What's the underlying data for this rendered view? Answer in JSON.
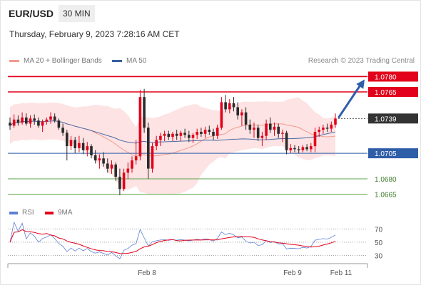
{
  "header": {
    "symbol": "EUR/USD",
    "timeframe": "30 MIN",
    "datetime": "Thursday, February 9, 2023 7:28:16 AM CET"
  },
  "legend": {
    "items": [
      {
        "label": "MA 20 + Bollinger Bands",
        "color": "#f29a8e"
      },
      {
        "label": "MA 50",
        "color": "#35609f"
      }
    ],
    "copyright": "Research © 2023 Trading Central"
  },
  "chart_data": [
    {
      "type": "candlestick",
      "title": "EUR/USD",
      "timeframe": "30 MIN",
      "ylim": [
        1.0657,
        1.0788
      ],
      "x_ticks": [
        "Feb 8",
        "Feb 9",
        "Feb 11"
      ],
      "candle_count": 81,
      "candles": [
        [
          1.0735,
          1.074,
          1.0728,
          1.0732
        ],
        [
          1.0732,
          1.0743,
          1.073,
          1.0738
        ],
        [
          1.0738,
          1.0742,
          1.0732,
          1.0735
        ],
        [
          1.0735,
          1.0745,
          1.0733,
          1.074
        ],
        [
          1.074,
          1.0744,
          1.0732,
          1.0734
        ],
        [
          1.0734,
          1.0742,
          1.073,
          1.0739
        ],
        [
          1.0739,
          1.0743,
          1.0733,
          1.0737
        ],
        [
          1.0737,
          1.074,
          1.073,
          1.0732
        ],
        [
          1.0732,
          1.0738,
          1.0726,
          1.0736
        ],
        [
          1.0736,
          1.074,
          1.0733,
          1.0738
        ],
        [
          1.0738,
          1.0745,
          1.0734,
          1.0741
        ],
        [
          1.0741,
          1.0744,
          1.0735,
          1.0737
        ],
        [
          1.0737,
          1.0739,
          1.0728,
          1.073
        ],
        [
          1.073,
          1.0734,
          1.0722,
          1.0725
        ],
        [
          1.0725,
          1.0728,
          1.0698,
          1.0712
        ],
        [
          1.0712,
          1.0722,
          1.0708,
          1.0718
        ],
        [
          1.0718,
          1.0721,
          1.0705,
          1.071
        ],
        [
          1.071,
          1.0722,
          1.0706,
          1.0715
        ],
        [
          1.0715,
          1.072,
          1.0704,
          1.0708
        ],
        [
          1.0708,
          1.0716,
          1.0702,
          1.0712
        ],
        [
          1.0712,
          1.0714,
          1.07,
          1.0703
        ],
        [
          1.0703,
          1.0708,
          1.0695,
          1.0698
        ],
        [
          1.0698,
          1.0704,
          1.069,
          1.07
        ],
        [
          1.07,
          1.0706,
          1.0692,
          1.0695
        ],
        [
          1.0695,
          1.07,
          1.0686,
          1.069
        ],
        [
          1.069,
          1.0698,
          1.0685,
          1.0694
        ],
        [
          1.0694,
          1.0696,
          1.0678,
          1.0682
        ],
        [
          1.0682,
          1.069,
          1.0664,
          1.067
        ],
        [
          1.067,
          1.069,
          1.0668,
          1.0686
        ],
        [
          1.0686,
          1.0696,
          1.068,
          1.069
        ],
        [
          1.069,
          1.0702,
          1.0686,
          1.0698
        ],
        [
          1.0698,
          1.0718,
          1.0694,
          1.0702
        ],
        [
          1.0702,
          1.0767,
          1.0698,
          1.076
        ],
        [
          1.076,
          1.0768,
          1.0725,
          1.073
        ],
        [
          1.073,
          1.0735,
          1.068,
          1.069
        ],
        [
          1.069,
          1.0715,
          1.0686,
          1.0712
        ],
        [
          1.0712,
          1.0722,
          1.0708,
          1.0718
        ],
        [
          1.0718,
          1.0725,
          1.0712,
          1.0722
        ],
        [
          1.0722,
          1.0727,
          1.0717,
          1.0724
        ],
        [
          1.0724,
          1.0727,
          1.0718,
          1.0721
        ],
        [
          1.0721,
          1.0726,
          1.0717,
          1.0724
        ],
        [
          1.0724,
          1.0728,
          1.0718,
          1.0722
        ],
        [
          1.0722,
          1.0727,
          1.0717,
          1.0725
        ],
        [
          1.0725,
          1.0729,
          1.072,
          1.0723
        ],
        [
          1.0723,
          1.0727,
          1.0716,
          1.072
        ],
        [
          1.072,
          1.0725,
          1.0715,
          1.0723
        ],
        [
          1.0723,
          1.0729,
          1.0719,
          1.0726
        ],
        [
          1.0726,
          1.073,
          1.0721,
          1.0724
        ],
        [
          1.0724,
          1.0731,
          1.072,
          1.0728
        ],
        [
          1.0728,
          1.0732,
          1.0723,
          1.0726
        ],
        [
          1.0726,
          1.0729,
          1.0718,
          1.0722
        ],
        [
          1.0722,
          1.0733,
          1.0719,
          1.073
        ],
        [
          1.073,
          1.076,
          1.0728,
          1.0755
        ],
        [
          1.0755,
          1.0762,
          1.0745,
          1.0748
        ],
        [
          1.0748,
          1.0758,
          1.0744,
          1.0754
        ],
        [
          1.0754,
          1.076,
          1.0746,
          1.075
        ],
        [
          1.075,
          1.0755,
          1.0738,
          1.0742
        ],
        [
          1.0742,
          1.0748,
          1.0732,
          1.0745
        ],
        [
          1.0745,
          1.075,
          1.0728,
          1.0733
        ],
        [
          1.0733,
          1.0738,
          1.0724,
          1.0728
        ],
        [
          1.0728,
          1.0735,
          1.072,
          1.073
        ],
        [
          1.073,
          1.0733,
          1.0717,
          1.072
        ],
        [
          1.072,
          1.0726,
          1.0712,
          1.0722
        ],
        [
          1.0722,
          1.0738,
          1.0718,
          1.0734
        ],
        [
          1.0734,
          1.074,
          1.0725,
          1.0728
        ],
        [
          1.0728,
          1.0735,
          1.0722,
          1.0731
        ],
        [
          1.0731,
          1.0734,
          1.072,
          1.0724
        ],
        [
          1.0724,
          1.0728,
          1.0716,
          1.0725
        ],
        [
          1.0725,
          1.0727,
          1.0704,
          1.0708
        ],
        [
          1.0708,
          1.0714,
          1.0705,
          1.071
        ],
        [
          1.071,
          1.0713,
          1.0706,
          1.0709
        ],
        [
          1.0709,
          1.0712,
          1.0705,
          1.0708
        ],
        [
          1.0708,
          1.0713,
          1.0706,
          1.0711
        ],
        [
          1.0711,
          1.0714,
          1.0707,
          1.0709
        ],
        [
          1.0709,
          1.0715,
          1.0706,
          1.0712
        ],
        [
          1.0712,
          1.073,
          1.0706,
          1.0726
        ],
        [
          1.0726,
          1.0731,
          1.0721,
          1.0728
        ],
        [
          1.0728,
          1.0733,
          1.0724,
          1.073
        ],
        [
          1.073,
          1.0734,
          1.0726,
          1.0729
        ],
        [
          1.0729,
          1.0736,
          1.0726,
          1.0733
        ],
        [
          1.0733,
          1.0744,
          1.073,
          1.0739
        ]
      ],
      "levels": [
        {
          "value": 1.078,
          "label": "1.0780",
          "type": "resistance"
        },
        {
          "value": 1.0765,
          "label": "1.0765",
          "type": "resistance"
        },
        {
          "value": 1.0739,
          "label": "1.0739",
          "type": "last"
        },
        {
          "value": 1.0705,
          "label": "1.0705",
          "type": "pivot"
        },
        {
          "value": 1.068,
          "label": "1.0680",
          "type": "support"
        },
        {
          "value": 1.0665,
          "label": "1.0665",
          "type": "support"
        }
      ],
      "forecast_arrow": {
        "from_value": 1.0739,
        "to_value": 1.078,
        "direction": "up",
        "color": "#2f5ea8"
      }
    },
    {
      "type": "line",
      "title": "RSI",
      "series": [
        {
          "name": "RSI",
          "color": "#5b7fd6"
        },
        {
          "name": "9MA",
          "color": "#e2001a"
        }
      ],
      "y_ticks": [
        70,
        50,
        30
      ],
      "ylim": [
        22,
        80
      ]
    }
  ]
}
